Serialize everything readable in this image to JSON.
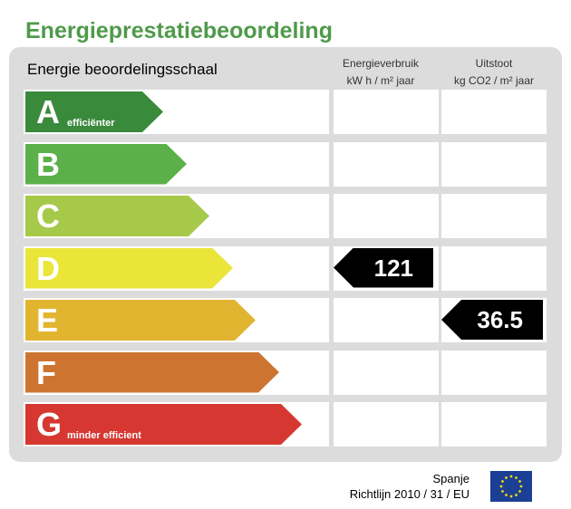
{
  "title": "Energieprestatiebeoordeling",
  "scale_label": "Energie beoordelingsschaal",
  "columns": {
    "energy_line1": "Energieverbruik",
    "energy_line2": "kW h / m² jaar",
    "co2_line1": "Uitstoot",
    "co2_line2": "kg CO2 / m² jaar"
  },
  "classes": [
    {
      "letter": "A",
      "sub": "efficiënter",
      "color": "#3a8a3c"
    },
    {
      "letter": "B",
      "sub": "",
      "color": "#5bb04a"
    },
    {
      "letter": "C",
      "sub": "",
      "color": "#a6c94a"
    },
    {
      "letter": "D",
      "sub": "",
      "color": "#ebe53a"
    },
    {
      "letter": "E",
      "sub": "",
      "color": "#e2b531"
    },
    {
      "letter": "F",
      "sub": "",
      "color": "#cd7530"
    },
    {
      "letter": "G",
      "sub": "minder efficient",
      "color": "#d63731"
    }
  ],
  "energy_rating": {
    "class": "D",
    "value": "121"
  },
  "co2_rating": {
    "class": "E",
    "value": "36.5"
  },
  "footer": {
    "country": "Spanje",
    "directive": "Richtlijn 2010 / 31 / EU"
  },
  "eu_flag_icon": "eu-flag-icon"
}
